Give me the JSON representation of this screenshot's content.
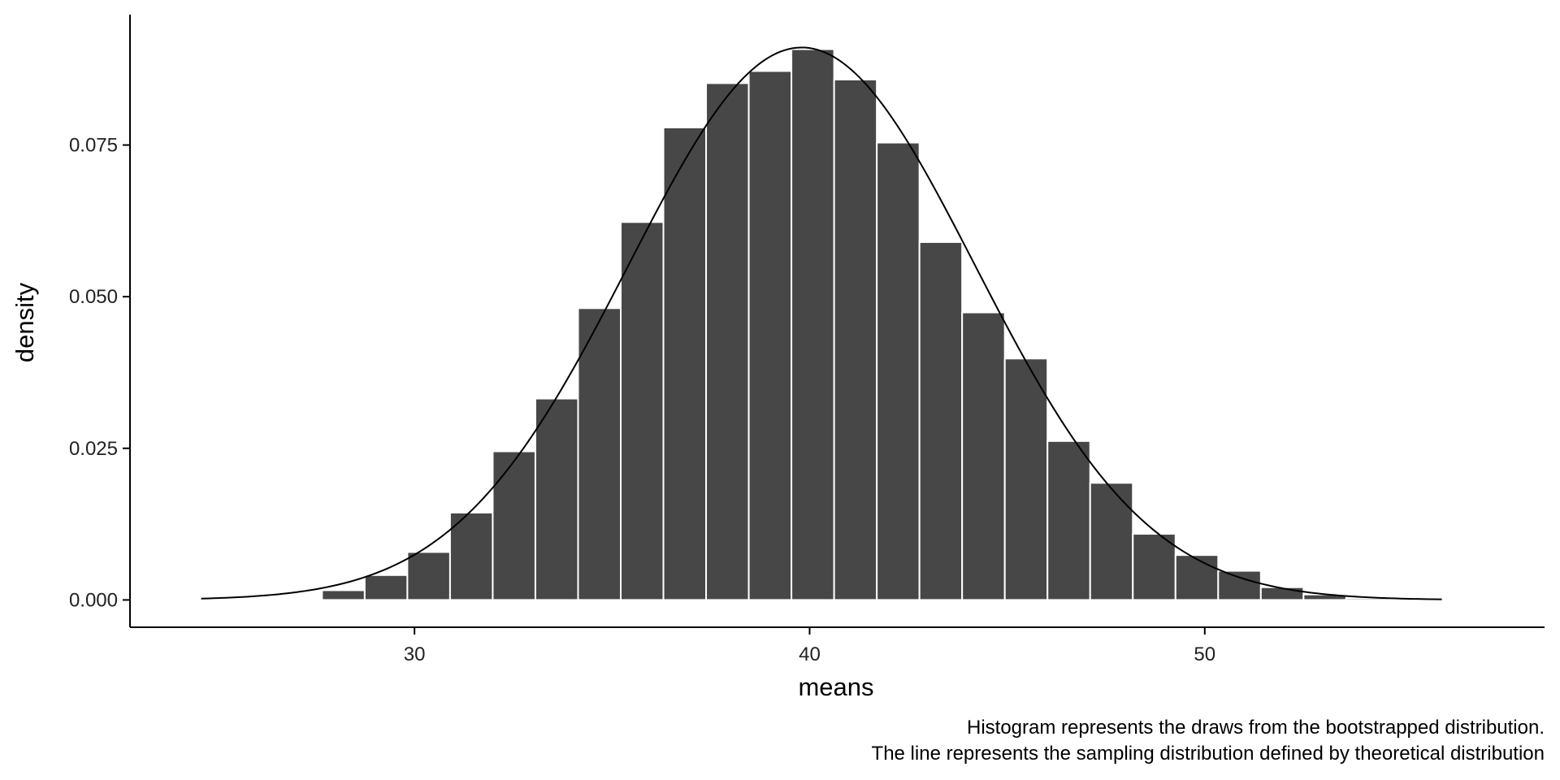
{
  "chart_data": {
    "type": "bar",
    "title": "",
    "xlabel": "means",
    "ylabel": "density",
    "caption": [
      "Histogram represents the draws from the bootstrapped distribution.",
      "The line represents the sampling distribution defined by theoretical distribution"
    ],
    "xlim": [
      22.8,
      58.6
    ],
    "ylim": [
      -0.0045,
      0.0965
    ],
    "x_ticks": [
      30,
      40,
      50
    ],
    "x_tick_labels": [
      "30",
      "40",
      "50"
    ],
    "y_ticks": [
      0,
      0.025,
      0.05,
      0.075
    ],
    "y_tick_labels": [
      "0.000",
      "0.025",
      "0.050",
      "0.075"
    ],
    "grid": false,
    "bin_width": 1.08,
    "bins": [
      {
        "x": 28.2,
        "density": 0.0016
      },
      {
        "x": 29.28,
        "density": 0.0041
      },
      {
        "x": 30.36,
        "density": 0.0079
      },
      {
        "x": 31.44,
        "density": 0.0144
      },
      {
        "x": 32.52,
        "density": 0.0245
      },
      {
        "x": 33.6,
        "density": 0.0332
      },
      {
        "x": 34.68,
        "density": 0.0481
      },
      {
        "x": 35.76,
        "density": 0.0623
      },
      {
        "x": 36.84,
        "density": 0.0779
      },
      {
        "x": 37.92,
        "density": 0.0852
      },
      {
        "x": 39.0,
        "density": 0.0872
      },
      {
        "x": 40.08,
        "density": 0.0908
      },
      {
        "x": 41.16,
        "density": 0.0858
      },
      {
        "x": 42.24,
        "density": 0.0754
      },
      {
        "x": 43.32,
        "density": 0.059
      },
      {
        "x": 44.4,
        "density": 0.0474
      },
      {
        "x": 45.48,
        "density": 0.0398
      },
      {
        "x": 46.56,
        "density": 0.0262
      },
      {
        "x": 47.64,
        "density": 0.0193
      },
      {
        "x": 48.72,
        "density": 0.0109
      },
      {
        "x": 49.8,
        "density": 0.0074
      },
      {
        "x": 50.88,
        "density": 0.0048
      },
      {
        "x": 51.96,
        "density": 0.0021
      },
      {
        "x": 53.04,
        "density": 0.0009
      },
      {
        "x": 54.12,
        "density": 0.0003
      }
    ],
    "theoretical_curve": {
      "distribution": "normal",
      "mean": 39.8,
      "sd": 4.38,
      "x_range": [
        24.6,
        56.0
      ]
    },
    "colors": {
      "bar_fill": "#474747",
      "bar_outline": "#ffffff",
      "curve": "#000000",
      "axis": "#000000"
    }
  }
}
